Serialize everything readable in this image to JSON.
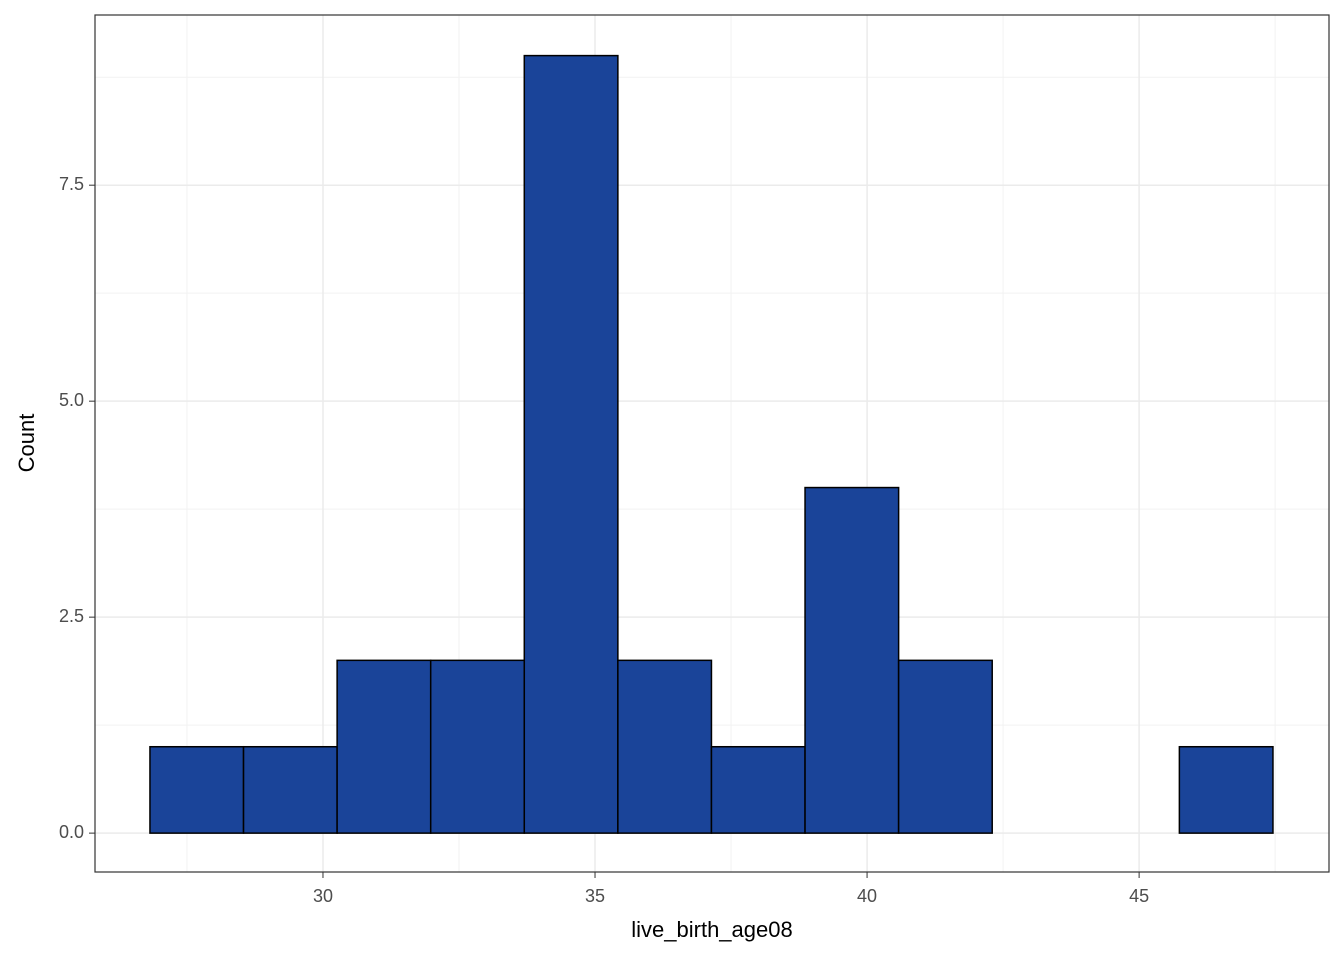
{
  "chart_data": {
    "type": "histogram",
    "x_label": "live_birth_age08",
    "y_label": "Count",
    "bins": [
      26.82,
      28.54,
      30.26,
      31.98,
      33.7,
      35.42,
      37.14,
      38.86,
      40.58,
      42.3,
      44.02,
      45.74,
      47.46
    ],
    "values": [
      1,
      1,
      2,
      2,
      9,
      2,
      1,
      4,
      2,
      0,
      0,
      1
    ],
    "color": "#1a4499",
    "edge_color": "#000000",
    "xlim": [
      25.81,
      48.49
    ],
    "xticks": [
      30,
      35,
      40,
      45
    ],
    "ylim": [
      -0.45,
      9.47
    ],
    "yticks": [
      {
        "value": 0,
        "label": "0.0"
      },
      2.5,
      {
        "value": 5,
        "label": "5.0"
      },
      7.5
    ],
    "grid": true
  }
}
